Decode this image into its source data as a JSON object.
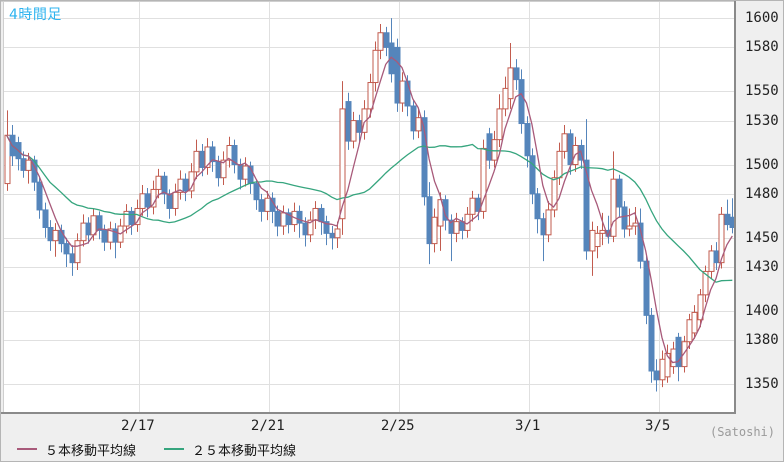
{
  "window": {
    "timeframe_label": "4時間足",
    "unit_label": "(Satoshi)"
  },
  "legend": {
    "ma5_label": "５本移動平均線",
    "ma25_label": "２５本移動平均線"
  },
  "chart_data": {
    "type": "candlestick",
    "title": "4時間足",
    "unit": "Satoshi",
    "legend_position": "bottom-left",
    "grid": true,
    "ylim": [
      1331,
      1611
    ],
    "y_ticks": [
      1600,
      1580,
      1550,
      1530,
      1500,
      1480,
      1450,
      1430,
      1400,
      1380,
      1350
    ],
    "x_ticks": [
      {
        "label": "2/17",
        "index": 24.4
      },
      {
        "label": "2/21",
        "index": 48.4
      },
      {
        "label": "2/25",
        "index": 72.4
      },
      {
        "label": "3/1",
        "index": 96.4
      },
      {
        "label": "3/5",
        "index": 120.4
      }
    ],
    "overlays": [
      {
        "name": "ma5",
        "label": "５本移動平均線",
        "period": 5,
        "color": "#a85a7a"
      },
      {
        "name": "ma25",
        "label": "２５本移動平均線",
        "period": 25,
        "color": "#36a57e"
      }
    ],
    "colors": {
      "up": "#c25b4e",
      "down": "#5585bb",
      "grid": "#e0e0e0",
      "title": "#2db3ef",
      "axis_text": "#222222",
      "panel_bg": "#efefef",
      "plot_bg": "#ffffff",
      "muted_text": "#9a9a9a"
    },
    "candles_ohlc": [
      [
        1487,
        1537,
        1482,
        1520
      ],
      [
        1520,
        1527,
        1499,
        1506
      ],
      [
        1515,
        1519,
        1496,
        1504
      ],
      [
        1504,
        1509,
        1491,
        1496
      ],
      [
        1496,
        1508,
        1487,
        1503
      ],
      [
        1503,
        1506,
        1482,
        1488
      ],
      [
        1488,
        1492,
        1463,
        1469
      ],
      [
        1469,
        1474,
        1450,
        1457
      ],
      [
        1457,
        1462,
        1441,
        1448
      ],
      [
        1448,
        1460,
        1437,
        1455
      ],
      [
        1455,
        1459,
        1440,
        1446
      ],
      [
        1446,
        1450,
        1430,
        1439
      ],
      [
        1439,
        1445,
        1424,
        1433
      ],
      [
        1433,
        1453,
        1428,
        1448
      ],
      [
        1448,
        1466,
        1444,
        1460
      ],
      [
        1460,
        1464,
        1446,
        1452
      ],
      [
        1452,
        1470,
        1448,
        1465
      ],
      [
        1465,
        1468,
        1449,
        1455
      ],
      [
        1455,
        1459,
        1441,
        1447
      ],
      [
        1447,
        1461,
        1442,
        1456
      ],
      [
        1456,
        1460,
        1436,
        1447
      ],
      [
        1447,
        1463,
        1443,
        1458
      ],
      [
        1458,
        1473,
        1453,
        1468
      ],
      [
        1468,
        1471,
        1452,
        1459
      ],
      [
        1459,
        1476,
        1454,
        1470
      ],
      [
        1470,
        1486,
        1465,
        1480
      ],
      [
        1480,
        1484,
        1464,
        1471
      ],
      [
        1471,
        1489,
        1466,
        1483
      ],
      [
        1483,
        1497,
        1477,
        1492
      ],
      [
        1492,
        1495,
        1473,
        1480
      ],
      [
        1480,
        1483,
        1463,
        1470
      ],
      [
        1470,
        1487,
        1465,
        1481
      ],
      [
        1481,
        1496,
        1476,
        1490
      ],
      [
        1490,
        1494,
        1475,
        1482
      ],
      [
        1482,
        1501,
        1477,
        1495
      ],
      [
        1495,
        1517,
        1490,
        1509
      ],
      [
        1509,
        1514,
        1492,
        1498
      ],
      [
        1498,
        1518,
        1493,
        1512
      ],
      [
        1512,
        1516,
        1495,
        1502
      ],
      [
        1502,
        1506,
        1485,
        1491
      ],
      [
        1491,
        1509,
        1486,
        1503
      ],
      [
        1503,
        1519,
        1498,
        1513
      ],
      [
        1513,
        1517,
        1494,
        1500
      ],
      [
        1500,
        1504,
        1483,
        1490
      ],
      [
        1490,
        1505,
        1485,
        1499
      ],
      [
        1499,
        1502,
        1480,
        1487
      ],
      [
        1487,
        1490,
        1469,
        1476
      ],
      [
        1476,
        1480,
        1461,
        1468
      ],
      [
        1468,
        1482,
        1462,
        1477
      ],
      [
        1477,
        1481,
        1460,
        1468
      ],
      [
        1468,
        1472,
        1451,
        1458
      ],
      [
        1458,
        1472,
        1452,
        1467
      ],
      [
        1467,
        1470,
        1453,
        1459
      ],
      [
        1459,
        1474,
        1454,
        1468
      ],
      [
        1468,
        1472,
        1450,
        1460
      ],
      [
        1460,
        1464,
        1444,
        1452
      ],
      [
        1452,
        1468,
        1447,
        1462
      ],
      [
        1462,
        1475,
        1456,
        1470
      ],
      [
        1470,
        1473,
        1452,
        1461
      ],
      [
        1461,
        1465,
        1445,
        1453
      ],
      [
        1453,
        1458,
        1442,
        1450
      ],
      [
        1450,
        1461,
        1443,
        1456
      ],
      [
        1463,
        1557,
        1452,
        1538
      ],
      [
        1543,
        1549,
        1510,
        1516
      ],
      [
        1516,
        1536,
        1511,
        1530
      ],
      [
        1530,
        1534,
        1515,
        1522
      ],
      [
        1522,
        1544,
        1517,
        1538
      ],
      [
        1538,
        1562,
        1532,
        1556
      ],
      [
        1556,
        1584,
        1550,
        1578
      ],
      [
        1578,
        1596,
        1572,
        1590
      ],
      [
        1590,
        1594,
        1574,
        1580
      ],
      [
        1583,
        1600,
        1556,
        1562
      ],
      [
        1580,
        1586,
        1536,
        1542
      ],
      [
        1542,
        1563,
        1536,
        1557
      ],
      [
        1557,
        1561,
        1533,
        1540
      ],
      [
        1540,
        1544,
        1517,
        1523
      ],
      [
        1523,
        1538,
        1518,
        1532
      ],
      [
        1532,
        1537,
        1472,
        1478
      ],
      [
        1478,
        1488,
        1432,
        1446
      ],
      [
        1446,
        1470,
        1440,
        1464
      ],
      [
        1458,
        1481,
        1441,
        1476
      ],
      [
        1476,
        1479,
        1455,
        1462
      ],
      [
        1462,
        1466,
        1434,
        1453
      ],
      [
        1453,
        1467,
        1447,
        1461
      ],
      [
        1461,
        1464,
        1449,
        1455
      ],
      [
        1455,
        1471,
        1450,
        1466
      ],
      [
        1466,
        1482,
        1461,
        1477
      ],
      [
        1477,
        1480,
        1462,
        1468
      ],
      [
        1468,
        1517,
        1463,
        1511
      ],
      [
        1521,
        1525,
        1497,
        1503
      ],
      [
        1503,
        1523,
        1498,
        1517
      ],
      [
        1517,
        1548,
        1512,
        1538
      ],
      [
        1538,
        1560,
        1533,
        1552
      ],
      [
        1545,
        1583,
        1538,
        1566
      ],
      [
        1566,
        1572,
        1551,
        1558
      ],
      [
        1558,
        1565,
        1521,
        1528
      ],
      [
        1528,
        1533,
        1498,
        1506
      ],
      [
        1506,
        1511,
        1473,
        1480
      ],
      [
        1480,
        1484,
        1453,
        1463
      ],
      [
        1463,
        1467,
        1434,
        1452
      ],
      [
        1452,
        1475,
        1447,
        1469
      ],
      [
        1469,
        1496,
        1464,
        1491
      ],
      [
        1491,
        1515,
        1486,
        1509
      ],
      [
        1509,
        1527,
        1504,
        1521
      ],
      [
        1521,
        1524,
        1493,
        1500
      ],
      [
        1500,
        1519,
        1495,
        1513
      ],
      [
        1513,
        1517,
        1497,
        1503
      ],
      [
        1503,
        1531,
        1435,
        1441
      ],
      [
        1441,
        1461,
        1424,
        1455
      ],
      [
        1444,
        1458,
        1436,
        1453
      ],
      [
        1453,
        1467,
        1445,
        1455
      ],
      [
        1455,
        1465,
        1446,
        1451
      ],
      [
        1451,
        1509,
        1447,
        1490
      ],
      [
        1490,
        1493,
        1464,
        1471
      ],
      [
        1471,
        1475,
        1450,
        1456
      ],
      [
        1456,
        1470,
        1451,
        1458
      ],
      [
        1458,
        1471,
        1452,
        1460
      ],
      [
        1460,
        1470,
        1429,
        1434
      ],
      [
        1434,
        1439,
        1391,
        1397
      ],
      [
        1397,
        1402,
        1351,
        1359
      ],
      [
        1359,
        1367,
        1345,
        1353
      ],
      [
        1353,
        1373,
        1348,
        1367
      ],
      [
        1355,
        1377,
        1351,
        1371
      ],
      [
        1362,
        1379,
        1357,
        1374
      ],
      [
        1382,
        1385,
        1352,
        1362
      ],
      [
        1362,
        1383,
        1358,
        1379
      ],
      [
        1379,
        1398,
        1374,
        1394
      ],
      [
        1385,
        1404,
        1381,
        1399
      ],
      [
        1394,
        1415,
        1389,
        1411
      ],
      [
        1411,
        1431,
        1406,
        1427
      ],
      [
        1427,
        1445,
        1422,
        1441
      ],
      [
        1441,
        1447,
        1428,
        1433
      ],
      [
        1433,
        1471,
        1429,
        1466
      ],
      [
        1466,
        1476,
        1455,
        1459
      ],
      [
        1464,
        1477,
        1453,
        1457
      ]
    ]
  }
}
